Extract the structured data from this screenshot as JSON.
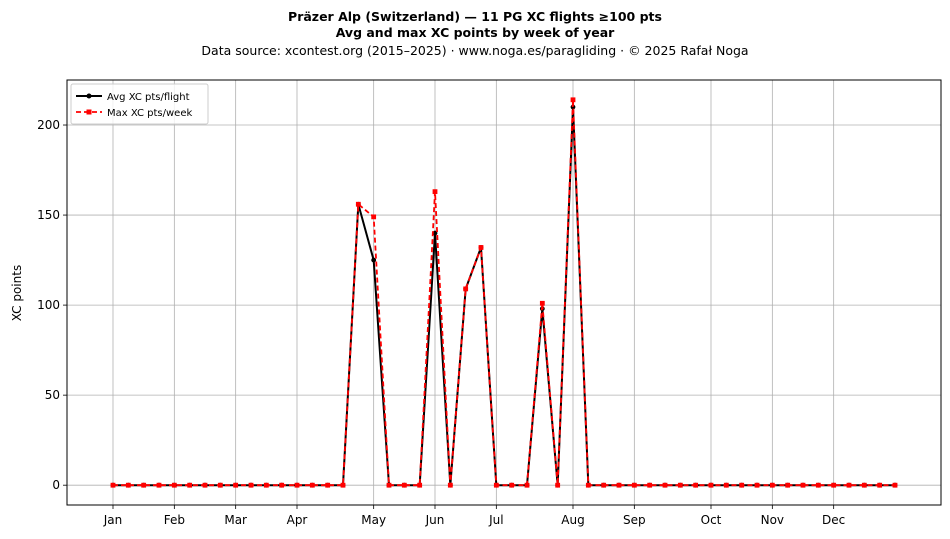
{
  "chart_data": {
    "type": "line",
    "title": "Präzer Alp (Switzerland)  —  11 PG XC flights ≥100 pts",
    "subtitle": "Avg and max XC points by week of year",
    "source": "Data source: xcontest.org (2015–2025)  ·  www.noga.es/paragliding  ·  © 2025 Rafał Noga",
    "xlabel": "",
    "ylabel": "XC points",
    "xlim": [
      -2,
      55
    ],
    "ylim": [
      -11,
      225
    ],
    "yticks": [
      0,
      50,
      100,
      150,
      200
    ],
    "xticks": [
      {
        "label": "Jan",
        "week": 1
      },
      {
        "label": "Feb",
        "week": 5
      },
      {
        "label": "Mar",
        "week": 9
      },
      {
        "label": "Apr",
        "week": 13
      },
      {
        "label": "May",
        "week": 18
      },
      {
        "label": "Jun",
        "week": 22
      },
      {
        "label": "Jul",
        "week": 26
      },
      {
        "label": "Aug",
        "week": 31
      },
      {
        "label": "Sep",
        "week": 35
      },
      {
        "label": "Oct",
        "week": 40
      },
      {
        "label": "Nov",
        "week": 44
      },
      {
        "label": "Dec",
        "week": 48
      }
    ],
    "grid": true,
    "legend_position": "top-left",
    "x": [
      1,
      2,
      3,
      4,
      5,
      6,
      7,
      8,
      9,
      10,
      11,
      12,
      13,
      14,
      15,
      16,
      17,
      18,
      19,
      20,
      21,
      22,
      23,
      24,
      25,
      26,
      27,
      28,
      29,
      30,
      31,
      32,
      33,
      34,
      35,
      36,
      37,
      38,
      39,
      40,
      41,
      42,
      43,
      44,
      45,
      46,
      47,
      48,
      49,
      50,
      51,
      52
    ],
    "series": [
      {
        "name": "Avg XC pts/flight",
        "color": "#000000",
        "style": "solid-circle",
        "values": [
          0,
          0,
          0,
          0,
          0,
          0,
          0,
          0,
          0,
          0,
          0,
          0,
          0,
          0,
          0,
          0,
          156,
          125,
          0,
          0,
          0,
          140,
          0,
          109,
          132,
          0,
          0,
          0,
          98,
          0,
          210,
          0,
          0,
          0,
          0,
          0,
          0,
          0,
          0,
          0,
          0,
          0,
          0,
          0,
          0,
          0,
          0,
          0,
          0,
          0,
          0,
          0
        ]
      },
      {
        "name": "Max XC pts/week",
        "color": "#ff0000",
        "style": "dashed-square",
        "values": [
          0,
          0,
          0,
          0,
          0,
          0,
          0,
          0,
          0,
          0,
          0,
          0,
          0,
          0,
          0,
          0,
          156,
          149,
          0,
          0,
          0,
          163,
          0,
          109,
          132,
          0,
          0,
          0,
          101,
          0,
          214,
          0,
          0,
          0,
          0,
          0,
          0,
          0,
          0,
          0,
          0,
          0,
          0,
          0,
          0,
          0,
          0,
          0,
          0,
          0,
          0,
          0
        ]
      }
    ]
  }
}
